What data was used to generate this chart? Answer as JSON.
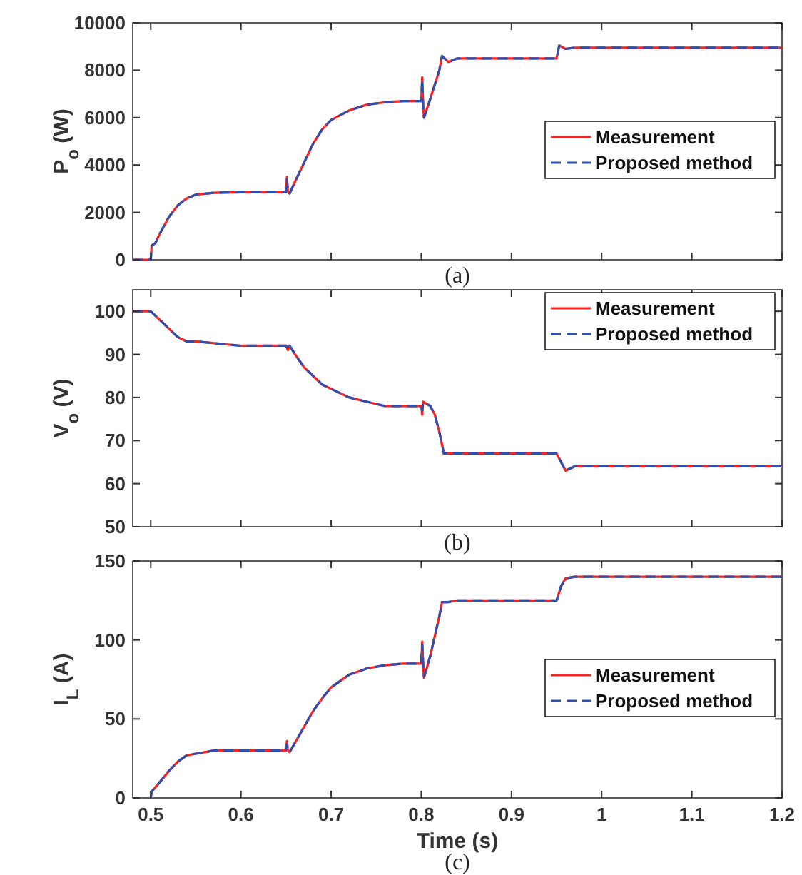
{
  "chart_data": [
    {
      "type": "line",
      "ylabel": "P$_{o}$ (W)",
      "annotations": [
        "(a)"
      ],
      "xlim": [
        0.48,
        1.2
      ],
      "xticks": [
        0.5,
        0.6,
        0.7,
        0.8,
        0.9,
        1,
        1.1,
        1.2
      ],
      "ylim": [
        0,
        10000
      ],
      "yticks": [
        0,
        2000,
        4000,
        6000,
        8000,
        10000
      ],
      "tick_labels": "y",
      "legend": "right",
      "grid": false,
      "x": [
        0.48,
        0.5,
        0.501,
        0.505,
        0.51,
        0.52,
        0.53,
        0.54,
        0.55,
        0.57,
        0.6,
        0.65,
        0.651,
        0.652,
        0.654,
        0.66,
        0.67,
        0.68,
        0.69,
        0.7,
        0.72,
        0.74,
        0.76,
        0.78,
        0.8,
        0.801,
        0.802,
        0.803,
        0.81,
        0.82,
        0.823,
        0.83,
        0.84,
        0.87,
        0.95,
        0.953,
        0.96,
        0.97,
        1.2
      ],
      "series": [
        {
          "name": "Measurement",
          "color": "#ff2020",
          "line_style": "solid",
          "values": [
            0,
            0,
            600,
            700,
            1100,
            1800,
            2300,
            2600,
            2750,
            2830,
            2850,
            2850,
            3500,
            2900,
            2800,
            3300,
            4100,
            4900,
            5500,
            5900,
            6300,
            6550,
            6650,
            6700,
            6700,
            7700,
            6500,
            6000,
            6800,
            8000,
            8600,
            8350,
            8500,
            8500,
            8500,
            9050,
            8900,
            8950,
            8950
          ]
        },
        {
          "name": "Proposed method",
          "color": "#2f4fb0",
          "line_style": "dashed",
          "values": [
            0,
            0,
            600,
            700,
            1100,
            1800,
            2300,
            2600,
            2750,
            2830,
            2850,
            2850,
            3400,
            2900,
            2800,
            3300,
            4100,
            4900,
            5500,
            5900,
            6300,
            6550,
            6650,
            6700,
            6700,
            7600,
            6500,
            6000,
            6800,
            8000,
            8600,
            8350,
            8500,
            8500,
            8500,
            9050,
            8900,
            8950,
            8950
          ]
        }
      ]
    },
    {
      "type": "line",
      "ylabel": "V$_{o}$ (V)",
      "annotations": [
        "(b)"
      ],
      "xlim": [
        0.48,
        1.2
      ],
      "xticks": [
        0.5,
        0.6,
        0.7,
        0.8,
        0.9,
        1,
        1.1,
        1.2
      ],
      "ylim": [
        50,
        105
      ],
      "yticks": [
        50,
        60,
        70,
        80,
        90,
        100
      ],
      "tick_labels": "y",
      "legend": "top right",
      "grid": false,
      "x": [
        0.48,
        0.5,
        0.51,
        0.52,
        0.53,
        0.54,
        0.55,
        0.6,
        0.65,
        0.652,
        0.654,
        0.66,
        0.67,
        0.68,
        0.69,
        0.7,
        0.72,
        0.74,
        0.76,
        0.8,
        0.801,
        0.802,
        0.81,
        0.815,
        0.82,
        0.825,
        0.83,
        0.84,
        0.95,
        0.955,
        0.96,
        0.97,
        1.2
      ],
      "series": [
        {
          "name": "Measurement",
          "color": "#ff2020",
          "line_style": "solid",
          "values": [
            100,
            100,
            98,
            96,
            94,
            93,
            93,
            92,
            92,
            91,
            92,
            90,
            87,
            85,
            83,
            82,
            80,
            79,
            78,
            78,
            76,
            79,
            78,
            76,
            72,
            67,
            67,
            67,
            67,
            65,
            63,
            64,
            64
          ]
        },
        {
          "name": "Proposed method",
          "color": "#2f4fb0",
          "line_style": "dashed",
          "values": [
            100,
            100,
            98,
            96,
            94,
            93,
            93,
            92,
            92,
            91,
            92,
            90,
            87,
            85,
            83,
            82,
            80,
            79,
            78,
            78,
            77,
            79,
            78,
            76,
            72,
            67,
            67,
            67,
            67,
            65,
            63,
            64,
            64
          ]
        }
      ]
    },
    {
      "type": "line",
      "ylabel": "I$_{L}$ (A)",
      "xlabel": "Time (s)",
      "annotations": [
        "(c)"
      ],
      "xlim": [
        0.48,
        1.2
      ],
      "xticks": [
        0.5,
        0.6,
        0.7,
        0.8,
        0.9,
        1,
        1.1,
        1.2
      ],
      "ylim": [
        0,
        150
      ],
      "yticks": [
        0,
        50,
        100,
        150
      ],
      "legend": "right",
      "grid": false,
      "x": [
        0.5,
        0.501,
        0.51,
        0.52,
        0.53,
        0.54,
        0.55,
        0.57,
        0.6,
        0.65,
        0.651,
        0.652,
        0.654,
        0.66,
        0.67,
        0.68,
        0.69,
        0.7,
        0.72,
        0.74,
        0.76,
        0.78,
        0.8,
        0.801,
        0.802,
        0.803,
        0.81,
        0.82,
        0.823,
        0.83,
        0.84,
        0.95,
        0.955,
        0.96,
        0.97,
        1.2
      ],
      "series": [
        {
          "name": "Measurement",
          "color": "#ff2020",
          "line_style": "solid",
          "values": [
            0,
            4,
            10,
            17,
            23,
            27,
            28,
            30,
            30,
            30,
            36,
            30,
            29,
            35,
            45,
            55,
            63,
            70,
            78,
            82,
            84,
            85,
            85,
            99,
            85,
            76,
            90,
            115,
            124,
            124,
            125,
            125,
            134,
            139,
            140,
            140
          ]
        },
        {
          "name": "Proposed method",
          "color": "#2f4fb0",
          "line_style": "dashed",
          "values": [
            0,
            4,
            10,
            17,
            23,
            27,
            28,
            30,
            30,
            30,
            34,
            30,
            29,
            35,
            45,
            55,
            63,
            70,
            78,
            82,
            84,
            85,
            85,
            97,
            85,
            77,
            90,
            115,
            124,
            124,
            125,
            125,
            134,
            139,
            140,
            140
          ]
        }
      ]
    }
  ]
}
